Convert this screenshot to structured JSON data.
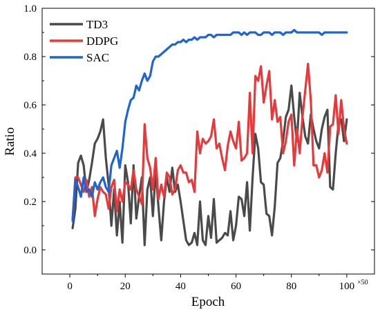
{
  "chart_data": {
    "type": "line",
    "xlabel": "Epoch",
    "ylabel": "Ratio",
    "x_multiplier_label": "×50",
    "xlim": [
      -10,
      110
    ],
    "ylim": [
      -0.1,
      1.0
    ],
    "xticks": [
      0,
      20,
      40,
      60,
      80,
      100
    ],
    "yticks": [
      0.0,
      0.2,
      0.4,
      0.6,
      0.8,
      1.0
    ],
    "xtick_labels": [
      "0",
      "20",
      "40",
      "60",
      "80",
      "100"
    ],
    "ytick_labels": [
      "0.0",
      "0.2",
      "0.4",
      "0.6",
      "0.8",
      "1.0"
    ],
    "grid": false,
    "legend_position": "top-left",
    "x": [
      1,
      2,
      3,
      4,
      5,
      6,
      7,
      8,
      9,
      10,
      11,
      12,
      13,
      14,
      15,
      16,
      17,
      18,
      19,
      20,
      21,
      22,
      23,
      24,
      25,
      26,
      27,
      28,
      29,
      30,
      31,
      32,
      33,
      34,
      35,
      36,
      37,
      38,
      39,
      40,
      41,
      42,
      43,
      44,
      45,
      46,
      47,
      48,
      49,
      50,
      51,
      52,
      53,
      54,
      55,
      56,
      57,
      58,
      59,
      60,
      61,
      62,
      63,
      64,
      65,
      66,
      67,
      68,
      69,
      70,
      71,
      72,
      73,
      74,
      75,
      76,
      77,
      78,
      79,
      80,
      81,
      82,
      83,
      84,
      85,
      86,
      87,
      88,
      89,
      90,
      91,
      92,
      93,
      94,
      95,
      96,
      97,
      98,
      99,
      100
    ],
    "series": [
      {
        "name": "TD3",
        "color": "#4a4a4a",
        "values": [
          0.09,
          0.17,
          0.36,
          0.39,
          0.35,
          0.24,
          0.29,
          0.36,
          0.44,
          0.46,
          0.49,
          0.54,
          0.38,
          0.27,
          0.1,
          0.25,
          0.06,
          0.2,
          0.03,
          0.35,
          0.28,
          0.11,
          0.35,
          0.13,
          0.22,
          0.3,
          0.02,
          0.25,
          0.3,
          0.14,
          0.33,
          0.18,
          0.04,
          0.2,
          0.3,
          0.24,
          0.34,
          0.24,
          0.27,
          0.2,
          0.12,
          0.04,
          0.02,
          0.03,
          0.07,
          0.02,
          0.2,
          0.04,
          0.02,
          0.14,
          0.05,
          0.21,
          0.03,
          0.04,
          0.05,
          0.07,
          0.06,
          0.16,
          0.04,
          0.1,
          0.22,
          0.21,
          0.14,
          0.28,
          0.08,
          0.3,
          0.48,
          0.42,
          0.28,
          0.27,
          0.15,
          0.14,
          0.06,
          0.18,
          0.36,
          0.38,
          0.45,
          0.55,
          0.58,
          0.68,
          0.55,
          0.45,
          0.65,
          0.55,
          0.47,
          0.44,
          0.56,
          0.5,
          0.45,
          0.42,
          0.5,
          0.55,
          0.58,
          0.26,
          0.25,
          0.4,
          0.52,
          0.54,
          0.45,
          0.54
        ]
      },
      {
        "name": "DDPG",
        "color": "#e8393a",
        "values": [
          0.13,
          0.3,
          0.3,
          0.27,
          0.24,
          0.29,
          0.22,
          0.26,
          0.14,
          0.21,
          0.26,
          0.24,
          0.23,
          0.17,
          0.26,
          0.29,
          0.16,
          0.25,
          0.2,
          0.28,
          0.27,
          0.25,
          0.33,
          0.25,
          0.22,
          0.19,
          0.52,
          0.38,
          0.34,
          0.25,
          0.38,
          0.21,
          0.27,
          0.22,
          0.32,
          0.3,
          0.23,
          0.25,
          0.33,
          0.35,
          0.32,
          0.32,
          0.28,
          0.29,
          0.24,
          0.49,
          0.4,
          0.46,
          0.44,
          0.45,
          0.47,
          0.54,
          0.42,
          0.44,
          0.38,
          0.33,
          0.43,
          0.49,
          0.45,
          0.42,
          0.53,
          0.37,
          0.38,
          0.4,
          0.65,
          0.4,
          0.72,
          0.7,
          0.76,
          0.61,
          0.68,
          0.74,
          0.54,
          0.62,
          0.53,
          0.55,
          0.4,
          0.45,
          0.53,
          0.56,
          0.35,
          0.5,
          0.4,
          0.55,
          0.66,
          0.77,
          0.62,
          0.35,
          0.35,
          0.3,
          0.33,
          0.4,
          0.32,
          0.51,
          0.52,
          0.64,
          0.48,
          0.62,
          0.5,
          0.44
        ]
      },
      {
        "name": "SAC",
        "color": "#1e64d2",
        "values": [
          0.12,
          0.29,
          0.26,
          0.22,
          0.3,
          0.24,
          0.25,
          0.22,
          0.28,
          0.25,
          0.28,
          0.3,
          0.26,
          0.24,
          0.35,
          0.38,
          0.41,
          0.34,
          0.42,
          0.53,
          0.58,
          0.62,
          0.63,
          0.68,
          0.66,
          0.7,
          0.73,
          0.7,
          0.72,
          0.78,
          0.8,
          0.8,
          0.81,
          0.82,
          0.83,
          0.84,
          0.85,
          0.85,
          0.86,
          0.86,
          0.87,
          0.86,
          0.87,
          0.87,
          0.88,
          0.87,
          0.88,
          0.88,
          0.88,
          0.89,
          0.89,
          0.88,
          0.89,
          0.89,
          0.89,
          0.89,
          0.89,
          0.89,
          0.9,
          0.9,
          0.9,
          0.89,
          0.9,
          0.89,
          0.9,
          0.9,
          0.9,
          0.89,
          0.89,
          0.9,
          0.9,
          0.9,
          0.89,
          0.9,
          0.9,
          0.9,
          0.89,
          0.9,
          0.9,
          0.9,
          0.91,
          0.9,
          0.9,
          0.9,
          0.9,
          0.9,
          0.9,
          0.9,
          0.9,
          0.9,
          0.89,
          0.9,
          0.9,
          0.9,
          0.9,
          0.9,
          0.9,
          0.9,
          0.9,
          0.9
        ]
      }
    ]
  }
}
